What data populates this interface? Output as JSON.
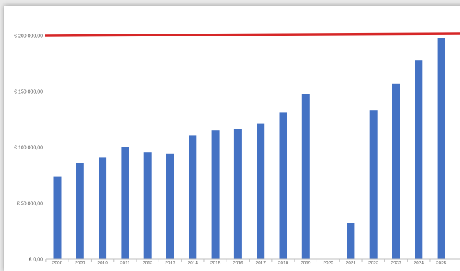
{
  "chart_data": {
    "type": "bar",
    "categories": [
      "2008",
      "2009",
      "2010",
      "2011",
      "2012",
      "2013",
      "2014",
      "2015",
      "2016",
      "2017",
      "2018",
      "2019",
      "2020",
      "2021",
      "2022",
      "2023",
      "2024",
      "2025"
    ],
    "values": [
      74000,
      86000,
      91000,
      100000,
      95500,
      94500,
      111000,
      115500,
      116500,
      121500,
      131000,
      147500,
      0,
      32500,
      133000,
      157000,
      178000,
      198000
    ],
    "ylim": [
      0,
      200000
    ],
    "yticks": [
      0,
      50000,
      100000,
      150000,
      200000
    ],
    "ytick_labels": [
      "€ 0,00",
      "€ 50.000,00",
      "€ 100.000,00",
      "€ 150.000,00",
      "€ 200.000,00"
    ],
    "reference_line": {
      "value": 200000,
      "color": "#d62728"
    },
    "bar_color": "#4472c4",
    "grid": false,
    "title": "",
    "xlabel": "",
    "ylabel": ""
  }
}
